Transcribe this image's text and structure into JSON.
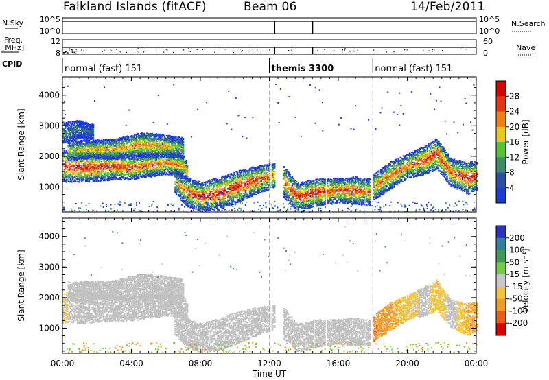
{
  "header": {
    "station": "Falkland Islands (fitACF)",
    "beam": "Beam 06",
    "date": "14/Feb/2011"
  },
  "ancillary": {
    "nsky_label": "N.Sky",
    "freq_label_1": "Freq.",
    "freq_label_2": "[MHz]",
    "cpid_label": "CPID",
    "nsearch_label": "N.Search",
    "nave_label": "Nave",
    "nsky_ticks": [
      "10^5",
      "10^0"
    ],
    "nsearch_ticks": [
      "10^5",
      "10^0"
    ],
    "freq_ticks": [
      "12",
      "8"
    ],
    "nave_ticks": [
      "60",
      "0"
    ],
    "cpid_segments": [
      {
        "label": "normal (fast) 151",
        "start_hour": 0,
        "end_hour": 12
      },
      {
        "label": "themis 3300",
        "start_hour": 12,
        "end_hour": 18
      },
      {
        "label": "normal (fast) 151",
        "start_hour": 18,
        "end_hour": 24
      }
    ]
  },
  "x_axis": {
    "label": "Time UT",
    "ticks": [
      "00:00",
      "04:00",
      "08:00",
      "12:00",
      "16:00",
      "20:00",
      "00:00"
    ],
    "tick_hours": [
      0,
      4,
      8,
      12,
      16,
      20,
      24
    ],
    "range_hours": [
      0,
      24
    ],
    "minor_step_hours": 0.5
  },
  "panels": {
    "power": {
      "ylabel": "Slant Range [km]",
      "yticks": [
        "1000",
        "2000",
        "3000",
        "4000"
      ],
      "ytick_values": [
        1000,
        2000,
        3000,
        4000
      ],
      "yrange": [
        180,
        4600
      ],
      "colorbar_label": "Power [dB]",
      "colorbar_ticks": [
        "4",
        "8",
        "12",
        "16",
        "20",
        "24",
        "28"
      ],
      "colorbar_colors": [
        "#1a3cdc",
        "#2c4fa6",
        "#3c8c66",
        "#55c236",
        "#e8c81c",
        "#f07e14",
        "#e83212",
        "#d80000"
      ]
    },
    "velocity": {
      "ylabel": "Slant Range [km]",
      "yticks": [
        "1000",
        "2000",
        "3000",
        "4000"
      ],
      "ytick_values": [
        1000,
        2000,
        3000,
        4000
      ],
      "yrange": [
        180,
        4600
      ],
      "colorbar_label": "Velocity [m s⁻¹]",
      "colorbar_ticks": [
        "200",
        "100",
        "50",
        "15",
        "-15",
        "-50",
        "-100",
        "-200"
      ],
      "colorbar_colors": [
        "#2b34b8",
        "#2f7fa2",
        "#3f9a55",
        "#72cc46",
        "#c8c8c8",
        "#f0c43c",
        "#f09a28",
        "#ec5a18",
        "#dc0000"
      ],
      "ground_scatter_color": "#c0c0c0"
    }
  },
  "chart_data": [
    {
      "type": "heatmap",
      "name": "Power",
      "x_unit": "hours UT",
      "y_unit": "km",
      "ylim": [
        180,
        4600
      ],
      "xlim": [
        0,
        24
      ],
      "bands": [
        {
          "x": [
            0.0,
            1.5,
            3.0,
            4.0,
            4.5,
            6.0,
            7.0,
            7.2
          ],
          "y_center": [
            1700,
            1650,
            1700,
            1650,
            1700,
            1800,
            1700,
            1500
          ],
          "y_width": [
            420,
            380,
            360,
            320,
            320,
            300,
            280,
            260
          ],
          "peak_db": [
            26,
            27,
            26,
            25,
            24,
            23,
            22,
            20
          ]
        },
        {
          "x": [
            0.3,
            1.5,
            3.0,
            4.5,
            6.0,
            7.0
          ],
          "y_center": [
            2200,
            2250,
            2250,
            2400,
            2350,
            2300
          ],
          "y_width": [
            260,
            240,
            260,
            320,
            300,
            260
          ],
          "peak_db": [
            18,
            20,
            22,
            22,
            20,
            14
          ]
        },
        {
          "x": [
            0.0,
            1.0,
            1.8
          ],
          "y_center": [
            2780,
            2900,
            2800
          ],
          "y_width": [
            280,
            240,
            200
          ],
          "peak_db": [
            12,
            10,
            8
          ]
        },
        {
          "x": [
            6.5,
            7.2,
            8.0,
            9.0,
            10.0,
            11.0,
            12.0,
            12.3
          ],
          "y_center": [
            1200,
            850,
            700,
            800,
            1000,
            1200,
            1350,
            1400
          ],
          "y_width": [
            320,
            380,
            380,
            420,
            420,
            380,
            340,
            320
          ],
          "peak_db": [
            18,
            24,
            28,
            28,
            27,
            26,
            24,
            22
          ]
        },
        {
          "x": [
            12.8,
            13.6,
            14.8,
            15.8,
            17.0,
            17.8
          ],
          "y_center": [
            1200,
            700,
            850,
            900,
            900,
            850
          ],
          "y_width": [
            420,
            360,
            360,
            320,
            360,
            340
          ],
          "peak_db": [
            22,
            27,
            27,
            24,
            26,
            22
          ]
        },
        {
          "x": [
            18.0,
            19.0,
            20.0,
            21.0,
            21.7,
            22.5,
            23.5,
            24.0
          ],
          "y_center": [
            1000,
            1400,
            1700,
            1900,
            2100,
            1500,
            1300,
            1400
          ],
          "y_width": [
            340,
            360,
            320,
            380,
            420,
            360,
            420,
            380
          ],
          "peak_db": [
            22,
            24,
            23,
            26,
            26,
            24,
            27,
            26
          ]
        }
      ]
    },
    {
      "type": "heatmap",
      "name": "Velocity",
      "x_unit": "hours UT",
      "y_unit": "km",
      "ylim": [
        180,
        4600
      ],
      "xlim": [
        0,
        24
      ],
      "bands": [
        {
          "x": [
            0.0,
            1.5,
            3.0,
            4.0,
            4.5,
            6.0,
            7.0,
            7.2
          ],
          "y_center": [
            1700,
            1650,
            1700,
            1650,
            1700,
            1800,
            1700,
            1500
          ],
          "y_width": [
            420,
            380,
            360,
            320,
            320,
            300,
            280,
            260
          ],
          "velocity": [
            -15,
            0,
            0,
            0,
            0,
            10,
            0,
            0
          ]
        },
        {
          "x": [
            0.3,
            1.5,
            3.0,
            4.5,
            6.0,
            7.0
          ],
          "y_center": [
            2200,
            2250,
            2250,
            2400,
            2350,
            2300
          ],
          "y_width": [
            260,
            240,
            260,
            320,
            300,
            260
          ],
          "velocity": [
            0,
            0,
            0,
            0,
            0,
            0
          ]
        },
        {
          "x": [
            6.5,
            7.2,
            8.0,
            9.0,
            10.0,
            11.0,
            12.0,
            12.3
          ],
          "y_center": [
            1200,
            850,
            700,
            800,
            1000,
            1200,
            1350,
            1400
          ],
          "y_width": [
            320,
            380,
            380,
            420,
            420,
            380,
            340,
            320
          ],
          "velocity": [
            0,
            0,
            0,
            0,
            0,
            0,
            0,
            0
          ]
        },
        {
          "x": [
            12.8,
            13.6,
            14.8,
            15.8,
            17.0,
            17.8
          ],
          "y_center": [
            1200,
            700,
            850,
            900,
            900,
            850
          ],
          "y_width": [
            420,
            360,
            360,
            320,
            360,
            340
          ],
          "velocity": [
            0,
            0,
            0,
            0,
            0,
            0
          ]
        },
        {
          "x": [
            18.0,
            19.0,
            20.0,
            21.0,
            21.7,
            22.5,
            23.5,
            24.0
          ],
          "y_center": [
            1000,
            1400,
            1700,
            1900,
            2100,
            1500,
            1300,
            1400
          ],
          "y_width": [
            340,
            360,
            320,
            380,
            420,
            360,
            420,
            380
          ],
          "velocity": [
            -100,
            -60,
            -30,
            0,
            -40,
            0,
            -50,
            -60
          ]
        }
      ]
    }
  ]
}
